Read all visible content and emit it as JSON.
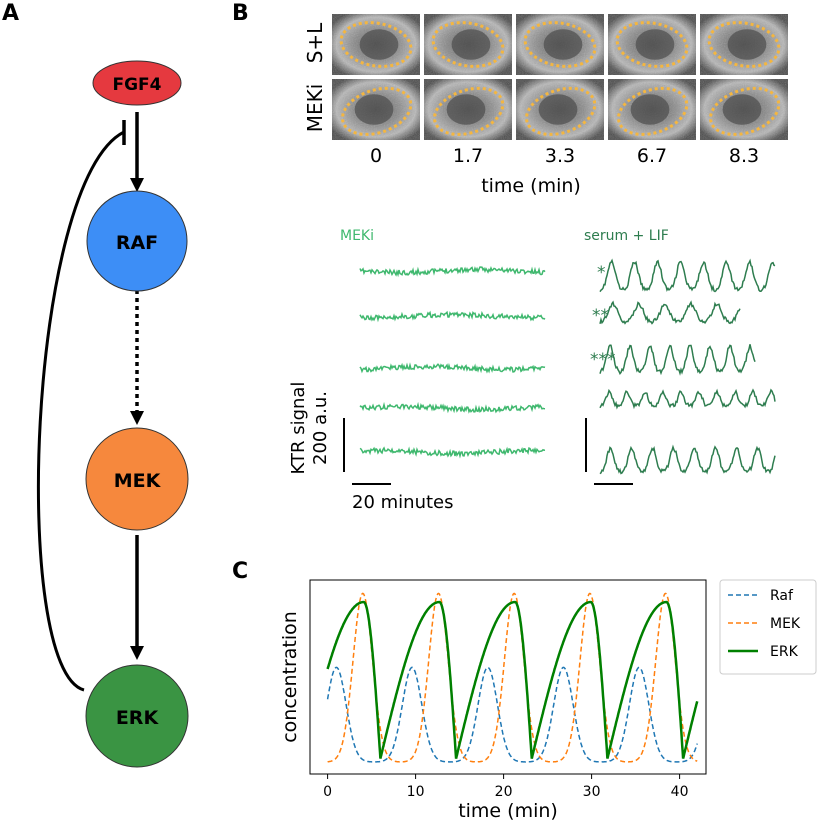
{
  "panels": {
    "a": "A",
    "b": "B",
    "c": "C"
  },
  "pathway": {
    "nodes": {
      "fgf4": {
        "label": "FGF4",
        "color": "#e5393f"
      },
      "raf": {
        "label": "RAF",
        "color": "#3d8ef6"
      },
      "mek": {
        "label": "MEK",
        "color": "#f6883d"
      },
      "erk": {
        "label": "ERK",
        "color": "#3a9443"
      }
    }
  },
  "microscopy": {
    "row_labels": [
      "S+L",
      "MEKi"
    ],
    "time_labels": [
      "0",
      "1.7",
      "3.3",
      "6.7",
      "8.3"
    ],
    "xlabel": "time (min)",
    "outline_color": "#f4b640"
  },
  "traces": {
    "meki_label": "MEKi",
    "sl_label": "serum + LIF",
    "stars": [
      "*",
      "**",
      "***"
    ],
    "ylabel_line1": "KTR signal",
    "ylabel_line2": "200 a.u.",
    "scalebar_label": "20 minutes",
    "meki_color": "#3fb86e",
    "sl_color": "#2e7d4f"
  },
  "chart_data": {
    "type": "line",
    "xlabel": "time (min)",
    "ylabel": "concentration",
    "xlim": [
      -2,
      43
    ],
    "xticks": [
      0,
      10,
      20,
      30,
      40
    ],
    "legend_position": "right-outside",
    "series": [
      {
        "name": "Raf",
        "color": "#1f77b4",
        "style": "dashed",
        "period": 8.6,
        "phase": 1.0,
        "peak": 0.55,
        "base": 0.0
      },
      {
        "name": "MEK",
        "color": "#ff7f0e",
        "style": "dashed",
        "period": 8.6,
        "phase": 4.0,
        "peak": 0.98,
        "base": 0.0
      },
      {
        "name": "ERK",
        "color": "#008000",
        "style": "solid",
        "period": 8.6,
        "phase": 6.0,
        "peak": 0.93,
        "base": 0.02
      }
    ]
  }
}
